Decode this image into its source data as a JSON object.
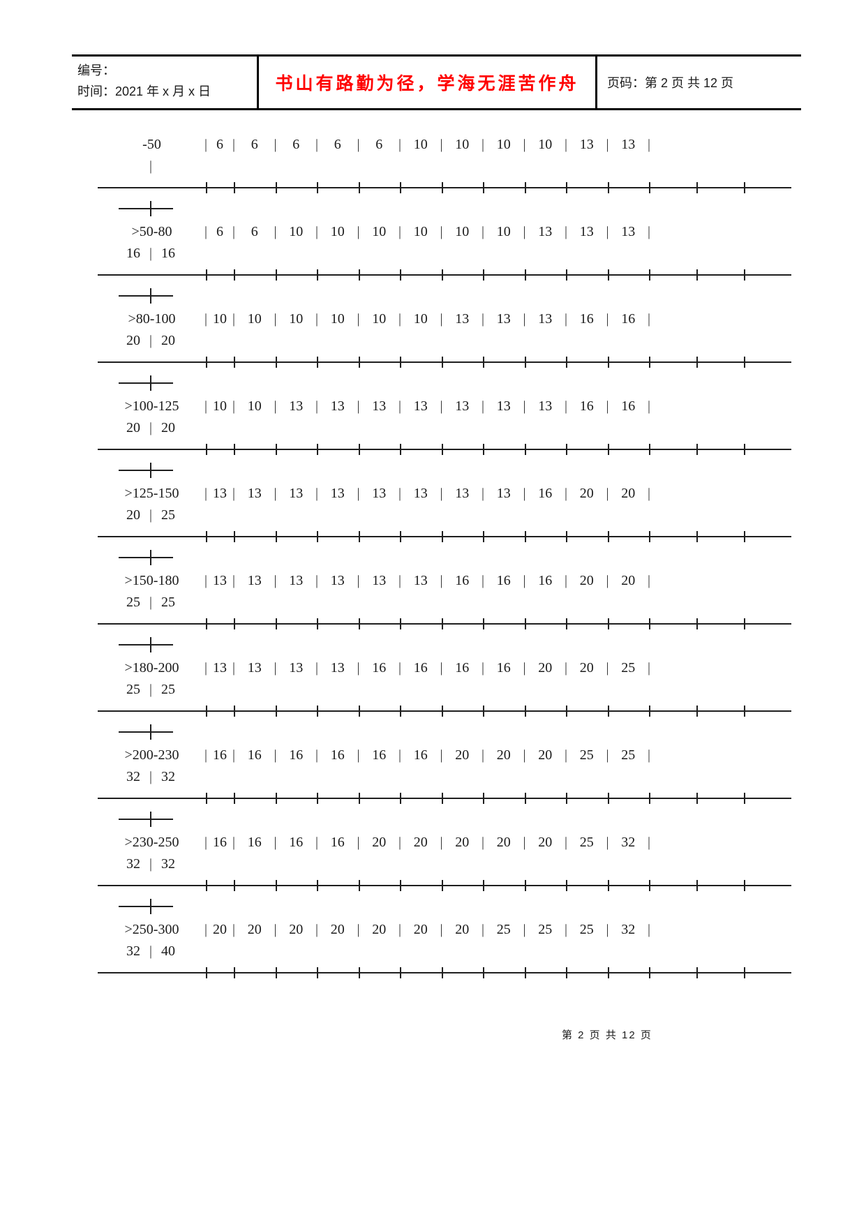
{
  "header": {
    "number_label": "编号：",
    "date_line": "时间：2021 年 x 月 x 日",
    "motto": "书山有路勤为径，学海无涯苦作舟",
    "motto_color": "#FF0000",
    "page_info": "页码：第 2 页 共 12 页"
  },
  "table": {
    "separator": "|",
    "rows": [
      {
        "label": "-50",
        "values": [
          "6",
          "6",
          "6",
          "6",
          "6",
          "10",
          "10",
          "10",
          "10",
          "13",
          "13"
        ],
        "wrap": []
      },
      {
        "label": ">50-80",
        "values": [
          "6",
          "6",
          "10",
          "10",
          "10",
          "10",
          "10",
          "10",
          "13",
          "13",
          "13"
        ],
        "wrap": [
          "16",
          "16"
        ]
      },
      {
        "label": ">80-100",
        "values": [
          "10",
          "10",
          "10",
          "10",
          "10",
          "10",
          "13",
          "13",
          "13",
          "16",
          "16"
        ],
        "wrap": [
          "20",
          "20"
        ]
      },
      {
        "label": ">100-125",
        "values": [
          "10",
          "10",
          "13",
          "13",
          "13",
          "13",
          "13",
          "13",
          "13",
          "16",
          "16"
        ],
        "wrap": [
          "20",
          "20"
        ]
      },
      {
        "label": ">125-150",
        "values": [
          "13",
          "13",
          "13",
          "13",
          "13",
          "13",
          "13",
          "13",
          "16",
          "20",
          "20"
        ],
        "wrap": [
          "20",
          "25"
        ]
      },
      {
        "label": ">150-180",
        "values": [
          "13",
          "13",
          "13",
          "13",
          "13",
          "13",
          "16",
          "16",
          "16",
          "20",
          "20"
        ],
        "wrap": [
          "25",
          "25"
        ]
      },
      {
        "label": ">180-200",
        "values": [
          "13",
          "13",
          "13",
          "13",
          "16",
          "16",
          "16",
          "16",
          "20",
          "20",
          "25"
        ],
        "wrap": [
          "25",
          "25"
        ]
      },
      {
        "label": ">200-230",
        "values": [
          "16",
          "16",
          "16",
          "16",
          "16",
          "16",
          "20",
          "20",
          "20",
          "25",
          "25"
        ],
        "wrap": [
          "32",
          "32"
        ]
      },
      {
        "label": ">230-250",
        "values": [
          "16",
          "16",
          "16",
          "16",
          "20",
          "20",
          "20",
          "20",
          "20",
          "25",
          "32"
        ],
        "wrap": [
          "32",
          "32"
        ]
      },
      {
        "label": ">250-300",
        "values": [
          "20",
          "20",
          "20",
          "20",
          "20",
          "20",
          "20",
          "25",
          "25",
          "25",
          "32"
        ],
        "wrap": [
          "32",
          "40"
        ]
      }
    ]
  },
  "footer": {
    "page_text": "第 2 页 共 12 页"
  }
}
